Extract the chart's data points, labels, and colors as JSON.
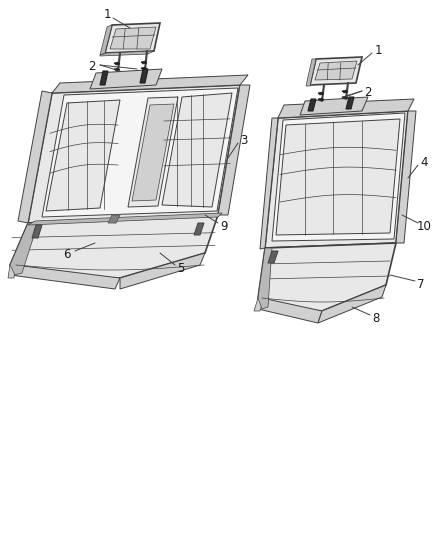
{
  "bg_color": "#ffffff",
  "line_color": "#404040",
  "fill_light": "#e8e8e8",
  "fill_mid": "#d0d0d0",
  "fill_dark": "#b8b8b8",
  "fill_white": "#f5f5f5",
  "figsize": [
    4.38,
    5.33
  ],
  "dpi": 100
}
